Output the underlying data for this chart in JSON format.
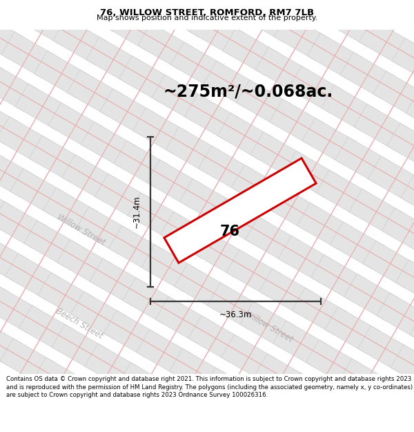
{
  "title_line1": "76, WILLOW STREET, ROMFORD, RM7 7LB",
  "title_line2": "Map shows position and indicative extent of the property.",
  "area_text": "~275m²/~0.068ac.",
  "label_76": "76",
  "dim_width": "~36.3m",
  "dim_height": "~31.4m",
  "street_label_willow1": "Willow Street",
  "street_label_willow2": "Willow Street",
  "street_label_beech": "Beech Street",
  "footer_text": "Contains OS data © Crown copyright and database right 2021. This information is subject to Crown copyright and database rights 2023 and is reproduced with the permission of HM Land Registry. The polygons (including the associated geometry, namely x, y co-ordinates) are subject to Crown copyright and database rights 2023 Ordnance Survey 100026316.",
  "map_bg": "#f7f7f7",
  "road_stroke": "#e8aaaa",
  "block_fill": "#e4e4e4",
  "block_stroke": "#cccccc",
  "property_stroke": "#cc0000",
  "property_fill": "#ffffff",
  "dim_line_color": "#333333",
  "street_color": "#b0b0b0",
  "title_fontsize": 9.5,
  "subtitle_fontsize": 8,
  "area_fontsize": 17,
  "street_fontsize": 8.5,
  "footer_fontsize": 6.2,
  "label_fontsize": 15,
  "dim_fontsize": 8.5
}
